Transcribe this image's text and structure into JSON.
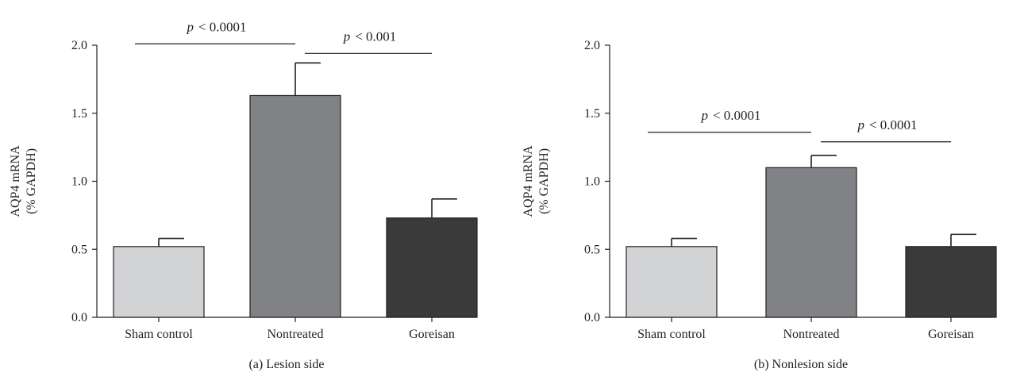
{
  "chart_data": [
    {
      "type": "bar",
      "caption": "(a)  Lesion side",
      "categories": [
        "Sham control",
        "Nontreated",
        "Goreisan"
      ],
      "values": [
        0.52,
        1.63,
        0.73
      ],
      "errors": [
        0.06,
        0.24,
        0.14
      ],
      "colors": [
        "#d2d3d5",
        "#808285",
        "#3a3a3b"
      ],
      "ylabel_line1": "AQP4 mRNA",
      "ylabel_line2": "(% GAPDH)",
      "ylim": [
        0,
        2.0
      ],
      "yticks": [
        "0.0",
        "0.5",
        "1.0",
        "1.5",
        "2.0"
      ],
      "yticks_values": [
        0,
        0.5,
        1.0,
        1.5,
        2.0
      ],
      "comparisons": [
        {
          "from": 0,
          "to": 1,
          "y": 2.01,
          "label": "< 0.0001"
        },
        {
          "from": 1,
          "to": 2,
          "y": 1.94,
          "label": "< 0.001"
        }
      ],
      "sig_symbol": "p"
    },
    {
      "type": "bar",
      "caption": "(b)  Nonlesion side",
      "categories": [
        "Sham control",
        "Nontreated",
        "Goreisan"
      ],
      "values": [
        0.52,
        1.1,
        0.52
      ],
      "errors": [
        0.06,
        0.09,
        0.09
      ],
      "colors": [
        "#d2d3d5",
        "#808285",
        "#3a3a3b"
      ],
      "ylabel_line1": "AQP4 mRNA",
      "ylabel_line2": "(% GAPDH)",
      "ylim": [
        0,
        2.0
      ],
      "yticks": [
        "0.0",
        "0.5",
        "1.0",
        "1.5",
        "2.0"
      ],
      "yticks_values": [
        0,
        0.5,
        1.0,
        1.5,
        2.0
      ],
      "comparisons": [
        {
          "from": 0,
          "to": 1,
          "y": 1.36,
          "label": "< 0.0001"
        },
        {
          "from": 1,
          "to": 2,
          "y": 1.29,
          "label": "< 0.0001"
        }
      ],
      "sig_symbol": "p"
    }
  ]
}
